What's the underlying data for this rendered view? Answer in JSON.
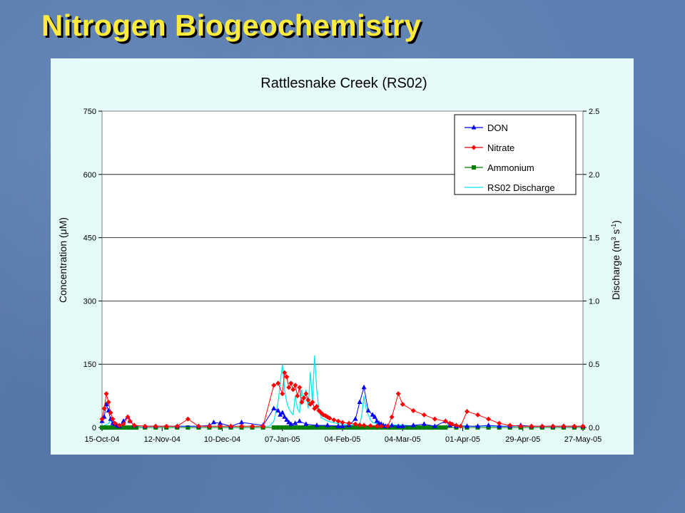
{
  "slide": {
    "title": "Nitrogen Biogeochemistry"
  },
  "colors": {
    "title": "#ffeb3b",
    "background": "#5b7fb1",
    "panel": "#e4fbfa",
    "don": "#0000ff",
    "nitrate": "#ff0000",
    "ammonium": "#008000",
    "discharge": "#00e5ee"
  },
  "chart_data": {
    "type": "line",
    "title": "Rattlesnake Creek (RS02)",
    "ylabel": "Concentration (μM)",
    "y2label_parts": [
      "Discharge (m",
      "3",
      " s",
      "-1",
      ")"
    ],
    "x_tick_labels": [
      "15-Oct-04",
      "12-Nov-04",
      "10-Dec-04",
      "07-Jan-05",
      "04-Feb-05",
      "04-Mar-05",
      "01-Apr-05",
      "29-Apr-05",
      "27-May-05"
    ],
    "y_ticks": [
      0,
      150,
      300,
      450,
      600,
      750
    ],
    "y2_ticks": [
      "0.0",
      "0.5",
      "1.0",
      "1.5",
      "2.0",
      "2.5"
    ],
    "ylim": [
      0,
      750
    ],
    "y2lim": [
      0,
      2.5
    ],
    "xlim_days": [
      0,
      224
    ],
    "grid": "horizontal",
    "legend_position": "top-right",
    "legend": [
      "DON",
      "Nitrate",
      "Ammonium",
      "RS02 Discharge"
    ],
    "series": [
      {
        "name": "DON",
        "axis": "left",
        "marker": "triangle",
        "x": [
          0,
          1,
          2,
          3,
          4,
          5,
          6,
          7,
          8,
          10,
          12,
          13,
          15,
          20,
          25,
          35,
          45,
          50,
          52,
          55,
          60,
          65,
          75,
          80,
          82,
          83,
          84,
          85,
          86,
          87,
          88,
          90,
          92,
          95,
          100,
          105,
          110,
          112,
          115,
          118,
          120,
          122,
          124,
          126,
          127,
          128,
          129,
          130,
          131,
          132,
          133,
          135,
          138,
          140,
          145,
          150,
          155,
          160,
          162,
          165,
          170,
          175,
          180,
          185,
          190,
          195,
          200,
          205,
          210,
          215,
          220,
          224
        ],
        "y": [
          15,
          25,
          55,
          40,
          20,
          10,
          8,
          5,
          3,
          15,
          25,
          15,
          5,
          3,
          3,
          3,
          3,
          5,
          12,
          10,
          3,
          12,
          5,
          45,
          40,
          30,
          35,
          25,
          18,
          12,
          8,
          10,
          15,
          8,
          5,
          5,
          3,
          3,
          5,
          20,
          60,
          95,
          40,
          30,
          25,
          15,
          10,
          8,
          5,
          3,
          3,
          5,
          3,
          3,
          5,
          8,
          3,
          15,
          5,
          3,
          3,
          3,
          5,
          3,
          3,
          5,
          3,
          3,
          3,
          3,
          3,
          3
        ]
      },
      {
        "name": "Nitrate",
        "axis": "left",
        "marker": "diamond",
        "x": [
          0,
          1,
          2,
          3,
          4,
          5,
          6,
          8,
          10,
          12,
          13,
          15,
          20,
          25,
          30,
          35,
          40,
          45,
          50,
          55,
          60,
          65,
          70,
          75,
          80,
          82,
          84,
          85,
          86,
          87,
          88,
          89,
          90,
          91,
          92,
          93,
          94,
          95,
          96,
          97,
          98,
          99,
          100,
          101,
          102,
          103,
          104,
          105,
          106,
          108,
          110,
          112,
          115,
          118,
          120,
          122,
          125,
          128,
          130,
          133,
          135,
          138,
          140,
          145,
          150,
          155,
          160,
          162,
          163,
          165,
          167,
          170,
          175,
          180,
          185,
          190,
          195,
          200,
          205,
          210,
          215,
          220,
          224
        ],
        "y": [
          20,
          45,
          80,
          60,
          35,
          20,
          10,
          5,
          8,
          25,
          15,
          5,
          3,
          3,
          3,
          3,
          20,
          3,
          3,
          3,
          3,
          3,
          3,
          3,
          100,
          105,
          80,
          130,
          120,
          95,
          105,
          90,
          100,
          75,
          95,
          60,
          70,
          80,
          65,
          55,
          60,
          45,
          50,
          40,
          35,
          30,
          28,
          25,
          22,
          18,
          15,
          12,
          10,
          8,
          6,
          5,
          4,
          3,
          3,
          3,
          25,
          80,
          55,
          40,
          30,
          20,
          15,
          10,
          8,
          5,
          3,
          38,
          30,
          20,
          10,
          5,
          3,
          3,
          3,
          3,
          3,
          3,
          3
        ]
      },
      {
        "name": "Ammonium",
        "axis": "left",
        "marker": "square",
        "x": [
          0,
          2,
          4,
          6,
          8,
          10,
          12,
          14,
          16,
          20,
          25,
          30,
          35,
          40,
          45,
          50,
          55,
          60,
          65,
          70,
          75,
          80,
          82,
          84,
          86,
          88,
          90,
          92,
          94,
          96,
          98,
          100,
          102,
          104,
          106,
          108,
          110,
          112,
          114,
          116,
          118,
          120,
          122,
          124,
          126,
          128,
          130,
          132,
          134,
          136,
          138,
          140,
          142,
          144,
          146,
          148,
          150,
          152,
          154,
          156,
          158,
          160,
          165,
          170,
          175,
          180,
          185,
          190,
          195,
          200,
          205,
          210,
          215,
          220,
          224
        ],
        "y": [
          0,
          0,
          0,
          0,
          0,
          0,
          0,
          0,
          0,
          0,
          0,
          0,
          0,
          0,
          0,
          0,
          0,
          0,
          0,
          0,
          0,
          0,
          0,
          0,
          0,
          0,
          0,
          0,
          0,
          0,
          0,
          0,
          0,
          0,
          0,
          0,
          0,
          0,
          0,
          0,
          0,
          0,
          0,
          0,
          0,
          0,
          0,
          0,
          0,
          0,
          0,
          0,
          0,
          0,
          0,
          0,
          0,
          0,
          0,
          0,
          0,
          0,
          0,
          0,
          0,
          0,
          0,
          0,
          0,
          0,
          0,
          0,
          0,
          0,
          0
        ]
      },
      {
        "name": "RS02 Discharge",
        "axis": "right",
        "marker": "none",
        "x": [
          0,
          3,
          4,
          5,
          8,
          10,
          40,
          50,
          78,
          80,
          81,
          82,
          83,
          84,
          85,
          86,
          87,
          88,
          89,
          90,
          91,
          92,
          93,
          94,
          95,
          96,
          97,
          98,
          99,
          100,
          101,
          102,
          105,
          110,
          115,
          120,
          121,
          122,
          123,
          124,
          125,
          126,
          128,
          130,
          135,
          140,
          145,
          150,
          155,
          160,
          162,
          165,
          170,
          180,
          190,
          200,
          210,
          220,
          224
        ],
        "y": [
          0.01,
          0.03,
          0.06,
          0.02,
          0.01,
          0.01,
          0.01,
          0.01,
          0.01,
          0.05,
          0.12,
          0.2,
          0.35,
          0.5,
          0.3,
          0.2,
          0.15,
          0.12,
          0.1,
          0.25,
          0.15,
          0.12,
          0.3,
          0.2,
          0.3,
          0.15,
          0.44,
          0.2,
          0.57,
          0.3,
          0.15,
          0.08,
          0.05,
          0.03,
          0.02,
          0.02,
          0.1,
          0.25,
          0.15,
          0.1,
          0.06,
          0.04,
          0.03,
          0.02,
          0.02,
          0.02,
          0.01,
          0.01,
          0.01,
          0.01,
          0.04,
          0.02,
          0.01,
          0.01,
          0.01,
          0.01,
          0.01,
          0.01,
          0.01
        ]
      }
    ]
  }
}
